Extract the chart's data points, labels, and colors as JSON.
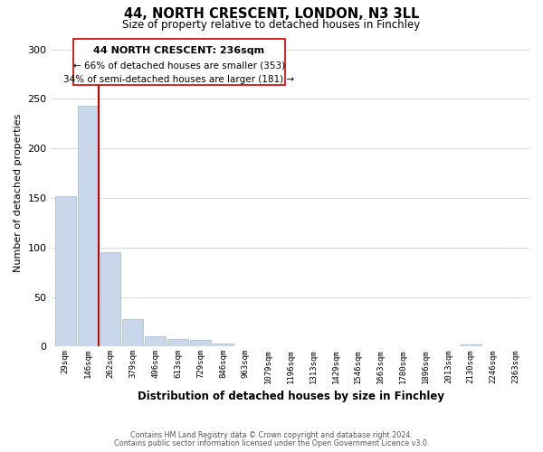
{
  "title": "44, NORTH CRESCENT, LONDON, N3 3LL",
  "subtitle": "Size of property relative to detached houses in Finchley",
  "xlabel": "Distribution of detached houses by size in Finchley",
  "ylabel": "Number of detached properties",
  "bar_labels": [
    "29sqm",
    "146sqm",
    "262sqm",
    "379sqm",
    "496sqm",
    "613sqm",
    "729sqm",
    "846sqm",
    "963sqm",
    "1079sqm",
    "1196sqm",
    "1313sqm",
    "1429sqm",
    "1546sqm",
    "1663sqm",
    "1780sqm",
    "1896sqm",
    "2013sqm",
    "2130sqm",
    "2246sqm",
    "2363sqm"
  ],
  "bar_values": [
    152,
    243,
    95,
    28,
    10,
    8,
    7,
    3,
    0,
    0,
    0,
    0,
    0,
    0,
    0,
    0,
    0,
    0,
    2,
    0,
    0
  ],
  "bar_color": "#c8d8ea",
  "bar_edge_color": "#a0b8cc",
  "vline_color": "#cc0000",
  "annotation_title": "44 NORTH CRESCENT: 236sqm",
  "annotation_line1": "← 66% of detached houses are smaller (353)",
  "annotation_line2": "34% of semi-detached houses are larger (181) →",
  "annotation_box_color": "#ffffff",
  "annotation_box_edge": "#cc0000",
  "ylim": [
    0,
    310
  ],
  "yticks": [
    0,
    50,
    100,
    150,
    200,
    250,
    300
  ],
  "footer1": "Contains HM Land Registry data © Crown copyright and database right 2024.",
  "footer2": "Contains public sector information licensed under the Open Government Licence v3.0.",
  "bg_color": "#ffffff",
  "grid_color": "#d0d8e4"
}
